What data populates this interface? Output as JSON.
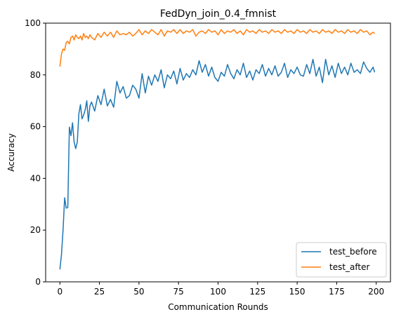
{
  "chart_data": {
    "type": "line",
    "title": "FedDyn_join_0.4_fmnist",
    "xlabel": "Communication Rounds",
    "ylabel": "Accuracy",
    "xlim": [
      -9,
      209
    ],
    "ylim": [
      0,
      100
    ],
    "xticks": [
      0,
      25,
      50,
      75,
      100,
      125,
      150,
      175,
      200
    ],
    "yticks": [
      0,
      20,
      40,
      60,
      80,
      100
    ],
    "grid": false,
    "legend": "lower-right",
    "colors": {
      "test_before": "#1f77b4",
      "test_after": "#ff7f0e"
    },
    "series": [
      {
        "name": "test_before",
        "x": [
          0,
          1,
          2,
          3,
          4,
          5,
          6,
          7,
          8,
          9,
          10,
          11,
          12,
          13,
          14,
          15,
          16,
          17,
          18,
          19,
          20,
          22,
          24,
          26,
          28,
          30,
          32,
          34,
          36,
          38,
          40,
          42,
          44,
          46,
          48,
          50,
          52,
          54,
          56,
          58,
          60,
          62,
          64,
          66,
          68,
          70,
          72,
          74,
          76,
          78,
          80,
          82,
          84,
          86,
          88,
          90,
          92,
          94,
          96,
          98,
          100,
          102,
          104,
          106,
          108,
          110,
          112,
          114,
          116,
          118,
          120,
          122,
          124,
          126,
          128,
          130,
          132,
          134,
          136,
          138,
          140,
          142,
          144,
          146,
          148,
          150,
          152,
          154,
          156,
          158,
          160,
          162,
          164,
          166,
          168,
          170,
          172,
          174,
          176,
          178,
          180,
          182,
          184,
          186,
          188,
          190,
          192,
          194,
          196,
          198,
          199
        ],
        "values": [
          4.8,
          10.5,
          20.0,
          32.5,
          28.5,
          28.7,
          59.8,
          56.5,
          61.5,
          54.0,
          51.5,
          54.0,
          65.0,
          68.5,
          63.0,
          64.5,
          66.5,
          70.0,
          62.0,
          68.0,
          69.5,
          66.0,
          72.0,
          68.5,
          74.5,
          68.0,
          70.5,
          67.5,
          77.5,
          73.0,
          75.5,
          71.0,
          72.0,
          76.0,
          74.5,
          71.0,
          80.5,
          73.0,
          79.5,
          76.0,
          80.0,
          77.5,
          82.0,
          75.0,
          80.0,
          78.5,
          81.5,
          76.5,
          82.5,
          78.0,
          80.5,
          79.0,
          82.0,
          80.0,
          85.5,
          81.0,
          84.0,
          79.5,
          83.0,
          79.0,
          77.5,
          81.0,
          79.5,
          84.0,
          80.5,
          78.5,
          82.0,
          80.0,
          84.5,
          79.0,
          81.5,
          78.0,
          82.0,
          80.5,
          84.0,
          79.5,
          82.5,
          80.0,
          83.5,
          79.5,
          81.0,
          84.5,
          79.0,
          82.0,
          80.5,
          83.0,
          80.0,
          79.5,
          84.0,
          80.5,
          86.0,
          79.5,
          83.0,
          77.0,
          86.0,
          80.0,
          83.5,
          79.0,
          84.5,
          80.5,
          83.0,
          80.0,
          84.5,
          81.0,
          82.0,
          80.5,
          85.0,
          82.5,
          81.0,
          83.0,
          81.0
        ]
      },
      {
        "name": "test_after",
        "x": [
          0,
          1,
          2,
          3,
          4,
          5,
          6,
          7,
          8,
          9,
          10,
          11,
          12,
          13,
          14,
          15,
          16,
          17,
          18,
          19,
          20,
          22,
          24,
          26,
          28,
          30,
          32,
          34,
          36,
          38,
          40,
          42,
          44,
          46,
          48,
          50,
          52,
          54,
          56,
          58,
          60,
          62,
          64,
          66,
          68,
          70,
          72,
          74,
          76,
          78,
          80,
          82,
          84,
          86,
          88,
          90,
          92,
          94,
          96,
          98,
          100,
          102,
          104,
          106,
          108,
          110,
          112,
          114,
          116,
          118,
          120,
          122,
          124,
          126,
          128,
          130,
          132,
          134,
          136,
          138,
          140,
          142,
          144,
          146,
          148,
          150,
          152,
          154,
          156,
          158,
          160,
          162,
          164,
          166,
          168,
          170,
          172,
          174,
          176,
          178,
          180,
          182,
          184,
          186,
          188,
          190,
          192,
          194,
          196,
          198,
          199
        ],
        "values": [
          83.2,
          88.0,
          90.0,
          89.5,
          92.5,
          93.0,
          92.0,
          94.5,
          95.0,
          93.5,
          95.5,
          94.5,
          94.0,
          95.0,
          93.5,
          96.0,
          94.5,
          95.0,
          94.0,
          95.5,
          94.5,
          93.5,
          96.0,
          94.5,
          96.5,
          95.0,
          96.5,
          94.5,
          97.0,
          95.5,
          96.0,
          95.5,
          96.5,
          95.0,
          96.0,
          97.5,
          95.5,
          97.0,
          96.0,
          97.5,
          96.5,
          95.5,
          97.5,
          95.0,
          97.0,
          96.5,
          97.5,
          96.0,
          97.5,
          96.0,
          97.0,
          96.5,
          97.5,
          95.0,
          96.5,
          97.0,
          96.0,
          97.5,
          96.5,
          97.0,
          95.5,
          97.5,
          96.0,
          97.0,
          96.5,
          97.5,
          96.0,
          97.0,
          95.5,
          97.5,
          96.5,
          97.0,
          96.0,
          97.5,
          96.5,
          97.0,
          96.0,
          97.5,
          96.5,
          97.0,
          96.0,
          97.5,
          96.5,
          97.0,
          96.0,
          97.5,
          96.5,
          97.0,
          96.0,
          97.5,
          96.5,
          97.0,
          96.0,
          97.5,
          96.5,
          97.0,
          96.0,
          97.5,
          96.5,
          97.0,
          96.0,
          97.5,
          96.5,
          97.0,
          96.0,
          97.5,
          96.5,
          97.0,
          95.5,
          96.5,
          96.0
        ]
      }
    ]
  }
}
